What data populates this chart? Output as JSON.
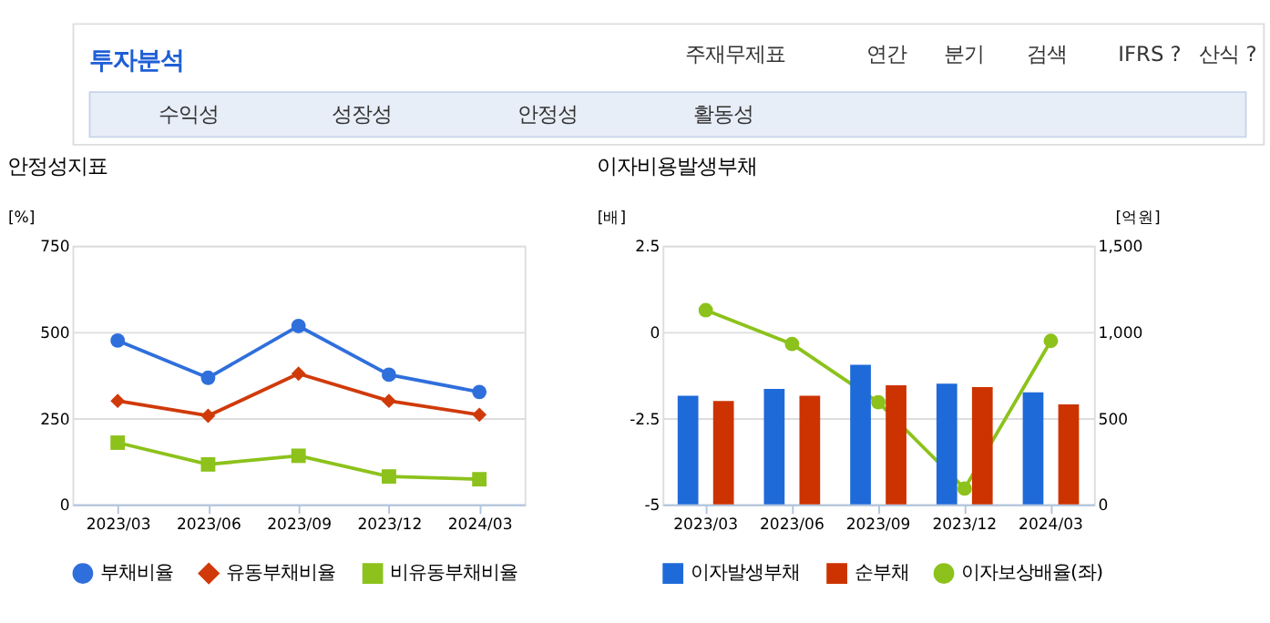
{
  "chart_data": [
    {
      "type": "other",
      "title": "투자분석",
      "annotations": [
        "주재무제표",
        "연간",
        "분기",
        "검색",
        "IFRS ?",
        "산식 ?",
        "수익성",
        "성장성",
        "안정성",
        "활동성"
      ]
    },
    {
      "type": "line",
      "title": "안정성지표",
      "ylabel": "[%]",
      "categories": [
        "2023/03",
        "2023/06",
        "2023/09",
        "2023/12",
        "2024/03"
      ],
      "ylim": [
        0,
        750
      ],
      "yticks": [
        0,
        250,
        500,
        750
      ],
      "grid": "y",
      "legend": "bottom",
      "line_style": "solid",
      "series": [
        {
          "name": "부채비율",
          "color": "#2f6fdc",
          "marker": "circle",
          "values": [
            475,
            367,
            517,
            376,
            326
          ]
        },
        {
          "name": "유동부채비율",
          "color": "#d03a0a",
          "marker": "diamond",
          "values": [
            300,
            257,
            379,
            300,
            260
          ]
        },
        {
          "name": "비유동부채비율",
          "color": "#8cc21b",
          "marker": "square",
          "values": [
            179,
            116,
            141,
            81,
            73
          ]
        }
      ]
    },
    {
      "type": "bar",
      "title": "이자비용발생부채",
      "ylabel": "[배]",
      "y2label": "[억원]",
      "categories": [
        "2023/03",
        "2023/06",
        "2023/09",
        "2023/12",
        "2024/03"
      ],
      "ylim": [
        -5,
        2.5
      ],
      "yticks": [
        -5,
        -2.5,
        0,
        2.5
      ],
      "y2lim": [
        0,
        1500
      ],
      "y2ticks": [
        0,
        500,
        {
          "value": 1000,
          "label": "1,000"
        },
        {
          "value": 1500,
          "label": "1,500"
        }
      ],
      "grid": "y",
      "legend": "bottom",
      "series": [
        {
          "name": "이자발생부채",
          "color": "#1f6ad9",
          "axis": "y2",
          "values": [
            630,
            670,
            810,
            700,
            650
          ]
        },
        {
          "name": "순부채",
          "color": "#cc3300",
          "axis": "y2",
          "values": [
            600,
            630,
            690,
            680,
            580
          ]
        },
        {
          "name": "이자보상배율(좌)",
          "type": "line",
          "color": "#8cc21b",
          "marker": "circle",
          "axis": "y",
          "values": [
            0.63,
            -0.35,
            -2.04,
            -4.54,
            -0.26
          ]
        }
      ]
    }
  ]
}
